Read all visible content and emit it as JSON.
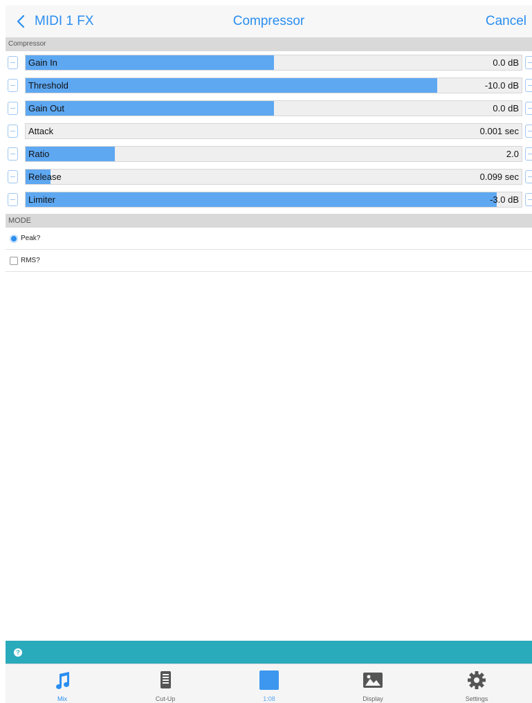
{
  "nav": {
    "back_label": "MIDI 1 FX",
    "title": "Compressor",
    "cancel_label": "Cancel"
  },
  "compressor": {
    "header": "Compressor",
    "params": [
      {
        "label": "Gain In",
        "value": "0.0 dB",
        "fill": 0.5
      },
      {
        "label": "Threshold",
        "value": "-10.0 dB",
        "fill": 0.83
      },
      {
        "label": "Gain Out",
        "value": "0.0 dB",
        "fill": 0.5
      },
      {
        "label": "Attack",
        "value": "0.001 sec",
        "fill": 0.0
      },
      {
        "label": "Ratio",
        "value": "2.0",
        "fill": 0.18
      },
      {
        "label": "Release",
        "value": "0.099 sec",
        "fill": 0.05
      },
      {
        "label": "Limiter",
        "value": "-3.0 dB",
        "fill": 0.95
      }
    ]
  },
  "mode": {
    "header": "MODE",
    "options": [
      {
        "label": "Peak?",
        "selected": true
      },
      {
        "label": "RMS?",
        "selected": false
      }
    ]
  },
  "info_bar": {
    "icon": "?"
  },
  "tabbar": {
    "tabs": [
      {
        "label": "Mix",
        "icon": "music-note-icon",
        "active": true
      },
      {
        "label": "Cut-Up",
        "icon": "document-icon",
        "active": false
      },
      {
        "label": "1:08",
        "icon": "square-icon",
        "active": false
      },
      {
        "label": "Display",
        "icon": "image-icon",
        "active": false
      },
      {
        "label": "Settings",
        "icon": "gear-icon",
        "active": false
      }
    ]
  },
  "colors": {
    "accent": "#2a8ef0",
    "slider_fill": "#5ea8f2",
    "info_bar": "#2aabbc"
  }
}
